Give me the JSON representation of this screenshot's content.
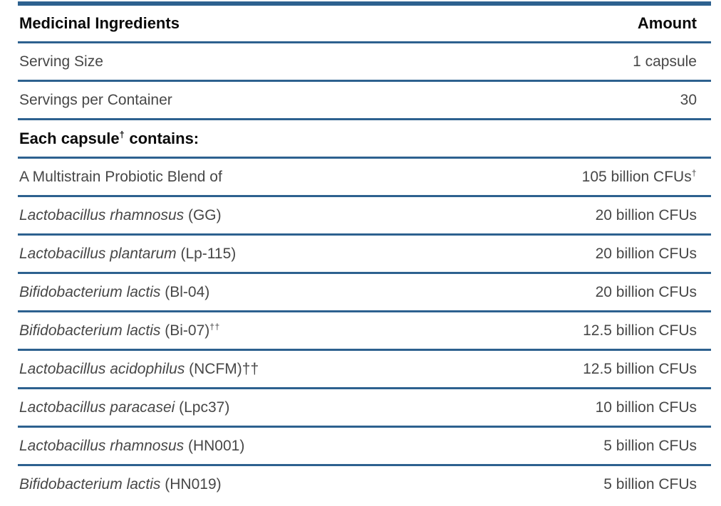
{
  "colors": {
    "rule": "#2d618f",
    "header_text": "#0a0a0a",
    "body_text": "#474747"
  },
  "table": {
    "header": {
      "left": "Medicinal Ingredients",
      "right": "Amount"
    },
    "rows": [
      {
        "label": "Serving Size",
        "value": "1 capsule"
      },
      {
        "label": "Servings per Container",
        "value": "30"
      },
      {
        "label_pre": "Each capsule",
        "label_sup": "†",
        "label_post": " contains:"
      },
      {
        "label": "A Multistrain Probiotic Blend of",
        "value": "105 billion CFUs",
        "value_sup": "†"
      },
      {
        "species": "Lactobacillus rhamnosus",
        "strain": " (GG)",
        "value": "20 billion CFUs"
      },
      {
        "species": "Lactobacillus plantarum",
        "strain": " (Lp-115)",
        "value": "20 billion CFUs"
      },
      {
        "species": "Bifidobacterium lactis",
        "strain": " (Bl-04)",
        "value": "20 billion CFUs"
      },
      {
        "species": "Bifidobacterium lactis",
        "strain": " (Bi-07)",
        "strain_sup": "††",
        "value": "12.5 billion CFUs"
      },
      {
        "species": "Lactobacillus acidophilus",
        "strain": " (NCFM)††",
        "value": "12.5 billion CFUs"
      },
      {
        "species": "Lactobacillus paracasei",
        "strain": " (Lpc37)",
        "value": "10 billion CFUs"
      },
      {
        "species": "Lactobacillus rhamnosus",
        "strain": " (HN001)",
        "value": "5 billion CFUs"
      },
      {
        "species": "Bifidobacterium lactis",
        "strain": " (HN019)",
        "value": "5 billion CFUs"
      }
    ]
  }
}
